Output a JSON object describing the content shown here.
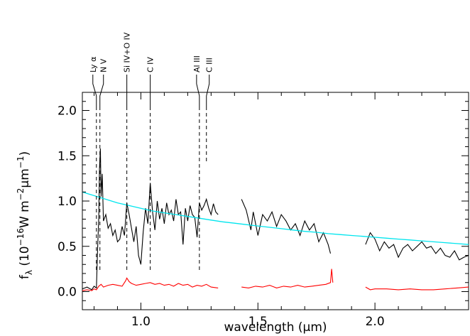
{
  "chart_data": {
    "type": "line",
    "title": "",
    "xlabel": "wavelength (μm)",
    "ylabel": {
      "f": "f",
      "sub": "λ",
      "open": " (10",
      "exp1": "−16",
      "mid1": "W m",
      "exp2": "−2",
      "mid2": "μm",
      "exp3": "−1",
      "close": ")"
    },
    "xlim": [
      0.75,
      2.4
    ],
    "ylim": [
      -0.2,
      2.2
    ],
    "xticks": [
      1.0,
      1.5,
      2.0
    ],
    "xtick_labels": [
      "1.0",
      "1.5",
      "2.0"
    ],
    "yticks": [
      0.0,
      0.5,
      1.0,
      1.5,
      2.0
    ],
    "ytick_labels": [
      "0.0",
      "0.5",
      "1.0",
      "1.5",
      "2.0"
    ],
    "grid": false,
    "colors": {
      "spectrum": "#000000",
      "error": "#ff0000",
      "model": "#00e5ee"
    },
    "line_markers": [
      {
        "label": "Ly α",
        "x": 0.81
      },
      {
        "label": "N V",
        "x": 0.825
      },
      {
        "label": "Si IV+O IV",
        "x": 0.94
      },
      {
        "label": "C IV",
        "x": 1.04
      },
      {
        "label": "Al III",
        "x": 1.25
      },
      {
        "label": "C III",
        "x": 1.28
      }
    ],
    "series": [
      {
        "role": "spectrum",
        "segments": [
          {
            "x": [
              0.75,
              0.77,
              0.79,
              0.8,
              0.81,
              0.815,
              0.82,
              0.823,
              0.827,
              0.83,
              0.835,
              0.84,
              0.85,
              0.86,
              0.87,
              0.88,
              0.89,
              0.9,
              0.91,
              0.92,
              0.93,
              0.94,
              0.95,
              0.96,
              0.97,
              0.98,
              0.99,
              1.0,
              1.01,
              1.02,
              1.03,
              1.04,
              1.05,
              1.06,
              1.07,
              1.08,
              1.09,
              1.1,
              1.11,
              1.12,
              1.13,
              1.14,
              1.15,
              1.16,
              1.17,
              1.18,
              1.19,
              1.2,
              1.21,
              1.22,
              1.23,
              1.24,
              1.25,
              1.26,
              1.27,
              1.28,
              1.29,
              1.3,
              1.31,
              1.32,
              1.33
            ],
            "y": [
              0.03,
              0.05,
              0.02,
              0.06,
              0.04,
              0.45,
              0.82,
              1.35,
              1.58,
              1.05,
              1.3,
              0.78,
              0.85,
              0.7,
              0.75,
              0.62,
              0.68,
              0.55,
              0.58,
              0.72,
              0.62,
              0.98,
              0.85,
              0.7,
              0.55,
              0.72,
              0.4,
              0.3,
              0.66,
              0.92,
              0.75,
              1.2,
              0.88,
              0.68,
              1.0,
              0.8,
              0.92,
              0.75,
              0.98,
              0.85,
              0.9,
              0.78,
              1.02,
              0.85,
              0.88,
              0.52,
              0.92,
              0.78,
              0.95,
              0.85,
              0.82,
              0.6,
              0.98,
              0.9,
              0.95,
              1.02,
              0.92,
              0.85,
              0.97,
              0.88,
              0.85
            ]
          },
          {
            "x": [
              1.43,
              1.45,
              1.47,
              1.48,
              1.5,
              1.52,
              1.54,
              1.56,
              1.58,
              1.6,
              1.62,
              1.64,
              1.66,
              1.68,
              1.7,
              1.72,
              1.74,
              1.76,
              1.78,
              1.8,
              1.81
            ],
            "y": [
              1.02,
              0.9,
              0.68,
              0.88,
              0.62,
              0.85,
              0.78,
              0.88,
              0.72,
              0.85,
              0.78,
              0.68,
              0.75,
              0.62,
              0.78,
              0.68,
              0.75,
              0.55,
              0.65,
              0.52,
              0.42
            ]
          },
          {
            "x": [
              1.96,
              1.98,
              2.0,
              2.02,
              2.04,
              2.06,
              2.08,
              2.1,
              2.12,
              2.14,
              2.16,
              2.18,
              2.2,
              2.22,
              2.24,
              2.26,
              2.28,
              2.3,
              2.32,
              2.34,
              2.36,
              2.38,
              2.4
            ],
            "y": [
              0.52,
              0.65,
              0.58,
              0.45,
              0.55,
              0.48,
              0.52,
              0.38,
              0.48,
              0.52,
              0.45,
              0.5,
              0.55,
              0.48,
              0.5,
              0.42,
              0.48,
              0.4,
              0.38,
              0.45,
              0.35,
              0.38,
              0.4
            ]
          }
        ]
      },
      {
        "role": "error",
        "segments": [
          {
            "x": [
              0.75,
              0.77,
              0.79,
              0.8,
              0.81,
              0.82,
              0.83,
              0.84,
              0.86,
              0.88,
              0.9,
              0.92,
              0.935,
              0.94,
              0.945,
              0.95,
              0.96,
              0.98,
              1.0,
              1.02,
              1.04,
              1.06,
              1.08,
              1.1,
              1.12,
              1.14,
              1.16,
              1.18,
              1.2,
              1.22,
              1.24,
              1.26,
              1.28,
              1.3,
              1.33
            ],
            "y": [
              0.01,
              0.02,
              0.01,
              0.03,
              0.02,
              0.06,
              0.08,
              0.05,
              0.07,
              0.08,
              0.07,
              0.06,
              0.12,
              0.15,
              0.13,
              0.11,
              0.09,
              0.07,
              0.08,
              0.09,
              0.1,
              0.08,
              0.09,
              0.07,
              0.08,
              0.06,
              0.09,
              0.07,
              0.08,
              0.05,
              0.07,
              0.06,
              0.08,
              0.05,
              0.04
            ]
          },
          {
            "x": [
              1.43,
              1.46,
              1.49,
              1.52,
              1.55,
              1.58,
              1.61,
              1.64,
              1.67,
              1.7,
              1.73,
              1.76,
              1.79,
              1.81,
              1.815,
              1.82
            ],
            "y": [
              0.05,
              0.04,
              0.06,
              0.05,
              0.07,
              0.04,
              0.06,
              0.05,
              0.07,
              0.05,
              0.06,
              0.07,
              0.08,
              0.1,
              0.25,
              0.1
            ]
          },
          {
            "x": [
              1.96,
              1.98,
              2.0,
              2.05,
              2.1,
              2.15,
              2.2,
              2.25,
              2.3,
              2.35,
              2.4
            ],
            "y": [
              0.05,
              0.02,
              0.03,
              0.03,
              0.02,
              0.03,
              0.02,
              0.02,
              0.03,
              0.04,
              0.05
            ]
          }
        ]
      },
      {
        "role": "model",
        "segments": [
          {
            "x": [
              0.75,
              0.8,
              0.85,
              0.9,
              0.95,
              1.0,
              1.05,
              1.1,
              1.15,
              1.2,
              1.25,
              1.3,
              1.35,
              1.4,
              1.45,
              1.5,
              1.55,
              1.6,
              1.65,
              1.7,
              1.75,
              1.8,
              1.85,
              1.9,
              1.95,
              2.0,
              2.05,
              2.1,
              2.15,
              2.2,
              2.25,
              2.3,
              2.35,
              2.4
            ],
            "y": [
              1.1,
              1.06,
              1.02,
              0.98,
              0.95,
              0.92,
              0.89,
              0.87,
              0.85,
              0.83,
              0.81,
              0.79,
              0.77,
              0.755,
              0.74,
              0.725,
              0.71,
              0.695,
              0.68,
              0.665,
              0.655,
              0.64,
              0.63,
              0.62,
              0.61,
              0.6,
              0.59,
              0.58,
              0.57,
              0.56,
              0.55,
              0.54,
              0.53,
              0.52
            ]
          }
        ]
      }
    ]
  }
}
